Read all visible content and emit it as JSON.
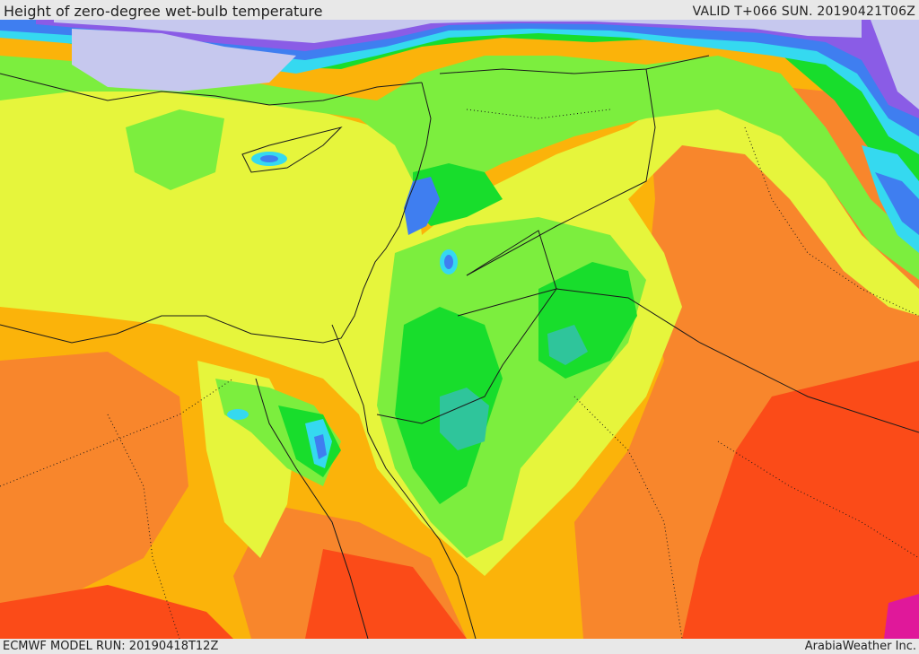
{
  "header": {
    "title": "Height of zero-degree wet-bulb temperature",
    "valid_time": "VALID T+066 SUN. 20190421T06Z"
  },
  "footer": {
    "model_run": "ECMWF MODEL RUN: 20190418T12Z",
    "credit": "ArabiaWeather Inc."
  },
  "palette": {
    "sea_low": "#c6c8ee",
    "purple": "#8a5ce6",
    "blue": "#3f7ef0",
    "cyan": "#35d9f0",
    "teal": "#2fc59b",
    "green": "#18dd2c",
    "light_green": "#7cee3e",
    "yellow_green": "#e6f53c",
    "orange_yellow": "#fbb30a",
    "orange": "#f8862c",
    "red_orange": "#fb4b18",
    "magenta": "#e0189a",
    "border": "#1a1a1a"
  }
}
